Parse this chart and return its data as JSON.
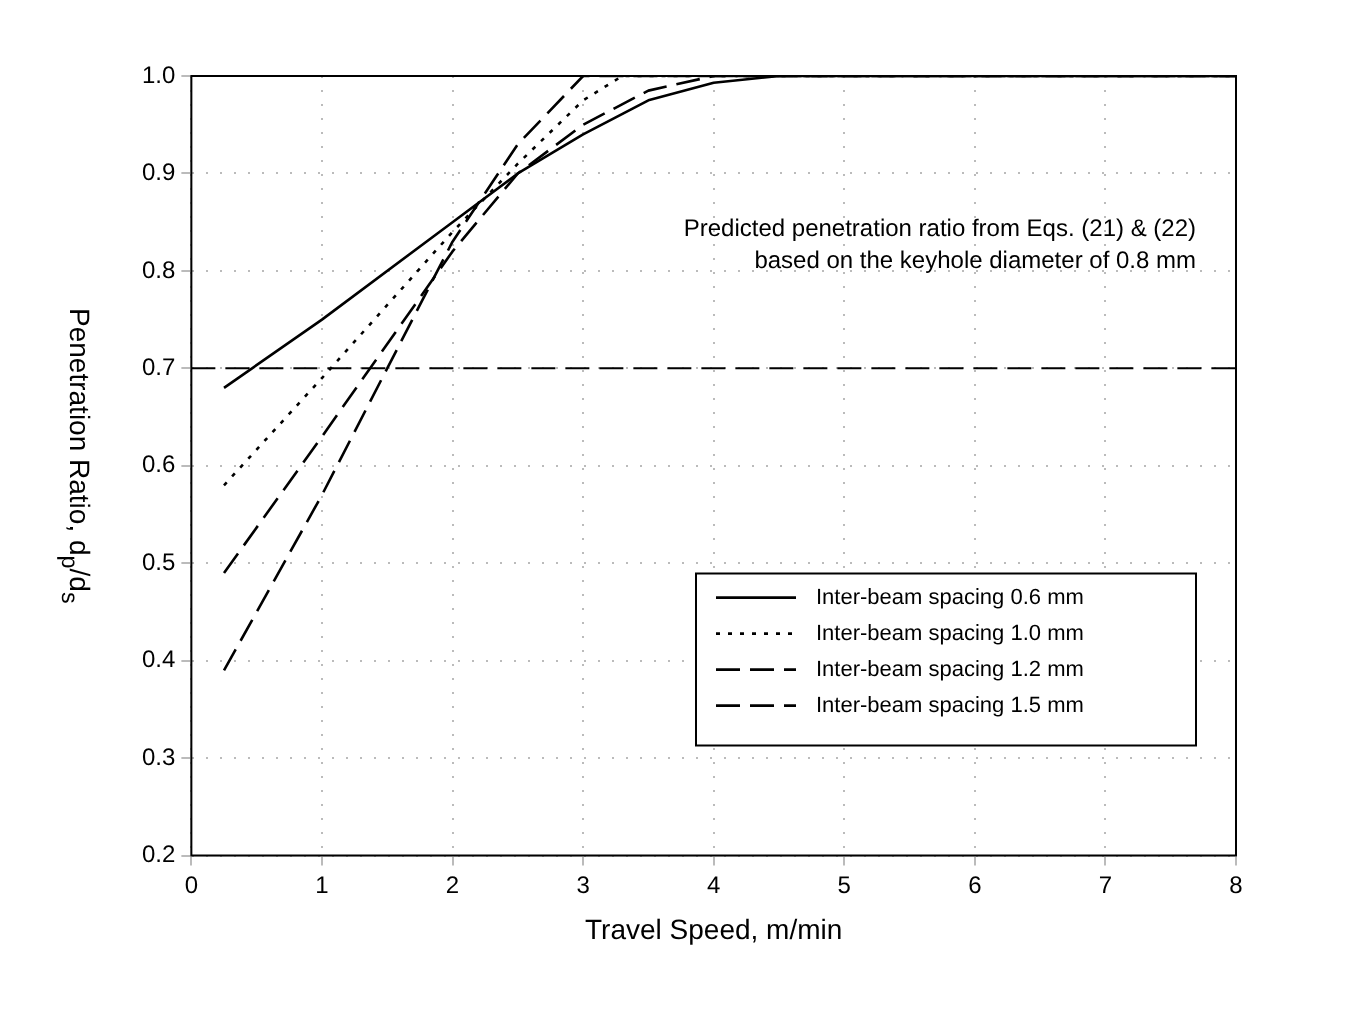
{
  "chart_data": {
    "type": "line",
    "xlabel": "Travel Speed, m/min",
    "ylabel": "Penetration Ratio, d$_{p}$/d$_{s}$",
    "xlim": [
      0,
      8
    ],
    "xticks": [
      0,
      1,
      2,
      3,
      4,
      5,
      6,
      7,
      8
    ],
    "ylim": [
      0.2,
      1.0
    ],
    "yticks": [
      {
        "value": 0.2,
        "label": "0.2"
      },
      {
        "value": 0.3,
        "label": "0.3"
      },
      {
        "value": 0.4,
        "label": "0.4"
      },
      {
        "value": 0.5,
        "label": "0.5"
      },
      {
        "value": 0.6,
        "label": "0.6"
      },
      {
        "value": 0.7,
        "label": "0.7"
      },
      {
        "value": 0.8,
        "label": "0.8"
      },
      {
        "value": 0.9,
        "label": "0.9"
      },
      {
        "value": 1.0,
        "label": "1.0"
      }
    ],
    "grid": true,
    "legend": "bottom right",
    "annotations": [
      "Predicted penetration ratio from Eqs. (21) & (22)",
      "based on the keyhole diameter of 0.8 mm"
    ],
    "ref_lines": [
      {
        "axis": "y",
        "value": 0.7,
        "label": null,
        "line_style": "dashed"
      }
    ],
    "series": [
      {
        "name": "Inter-beam spacing 0.6 mm",
        "color": "#000000",
        "line_style": "solid",
        "x": [
          0.25,
          1,
          2,
          2.5,
          3,
          3.5,
          4,
          4.5,
          8
        ],
        "values": [
          0.68,
          0.75,
          0.85,
          0.9,
          0.94,
          0.975,
          0.993,
          1.0,
          1.0
        ]
      },
      {
        "name": "Inter-beam spacing 1.0 mm",
        "color": "#000000",
        "line_style": "dotted",
        "x": [
          0.25,
          1,
          2,
          2.5,
          3,
          3.3,
          8
        ],
        "values": [
          0.58,
          0.69,
          0.84,
          0.91,
          0.975,
          1.0,
          1.0
        ]
      },
      {
        "name": "Inter-beam spacing 1.2 mm",
        "color": "#000000",
        "line_style": "dashed",
        "x": [
          0.25,
          1,
          2,
          2.5,
          3,
          3.5,
          4,
          8
        ],
        "values": [
          0.49,
          0.63,
          0.82,
          0.9,
          0.95,
          0.985,
          1.0,
          1.0
        ]
      },
      {
        "name": "Inter-beam spacing 1.5 mm",
        "color": "#000000",
        "line_style": "dashed",
        "x": [
          0.25,
          1,
          2,
          2.5,
          3,
          8
        ],
        "values": [
          0.39,
          0.57,
          0.83,
          0.93,
          1.0,
          1.0
        ]
      }
    ]
  }
}
